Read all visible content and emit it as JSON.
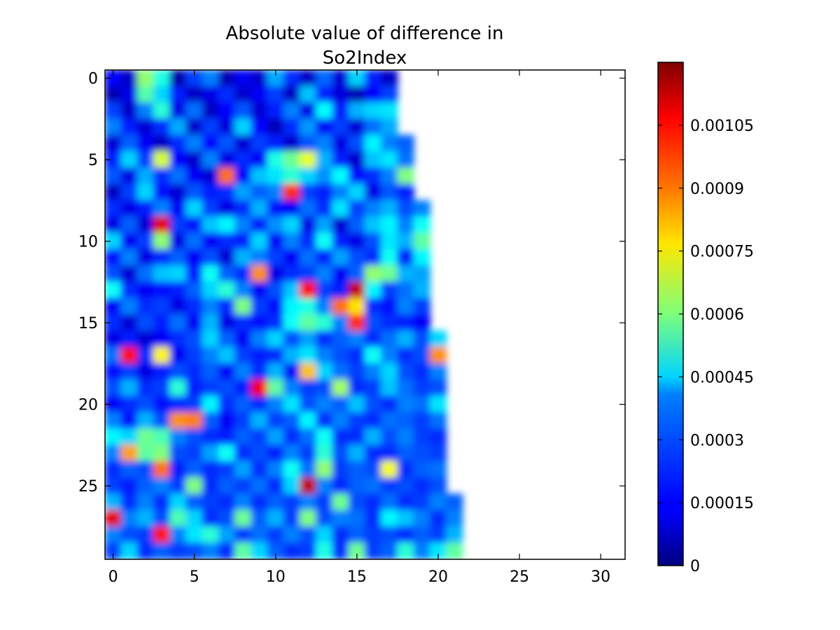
{
  "chart_data": {
    "type": "heatmap",
    "title_lines": [
      "Absolute value of difference in",
      "So2Index"
    ],
    "xlabel": "",
    "ylabel": "",
    "x_ticks": [
      0,
      5,
      10,
      15,
      20,
      25,
      30
    ],
    "y_ticks": [
      0,
      5,
      10,
      15,
      20,
      25
    ],
    "xlim": [
      -0.5,
      31.5
    ],
    "ylim": [
      29.5,
      -0.5
    ],
    "y_axis_inverted": true,
    "interpolation": "bilinear",
    "grid": false,
    "colormap": "jet",
    "colorbar": {
      "range": [
        0,
        0.0012
      ],
      "ticks": [
        {
          "value": 0,
          "label": "0"
        },
        {
          "value": 0.00015,
          "label": "0.00015"
        },
        {
          "value": 0.0003,
          "label": "0.0003"
        },
        {
          "value": 0.00045,
          "label": "0.00045"
        },
        {
          "value": 0.0006,
          "label": "0.0006"
        },
        {
          "value": 0.00075,
          "label": "0.00075"
        },
        {
          "value": 0.0009,
          "label": "0.0009"
        },
        {
          "value": 0.00105,
          "label": "0.00105"
        }
      ]
    },
    "row_valid_cols": [
      18,
      18,
      18,
      18,
      19,
      19,
      19,
      19,
      20,
      20,
      20,
      20,
      20,
      20,
      20,
      20,
      21,
      21,
      21,
      21,
      21,
      21,
      21,
      21,
      21,
      21,
      22,
      22,
      22,
      22
    ],
    "values_scale": 1e-05,
    "values": [
      [
        15,
        8,
        62,
        48,
        5,
        22,
        30,
        6,
        14,
        9,
        35,
        20,
        8,
        27,
        10,
        40,
        18,
        8,
        0,
        0,
        0,
        0,
        0,
        0,
        0,
        0,
        0,
        0,
        0,
        0,
        0,
        0
      ],
      [
        6,
        12,
        55,
        40,
        18,
        8,
        12,
        20,
        9,
        14,
        22,
        8,
        38,
        19,
        11,
        6,
        15,
        22,
        0,
        0,
        0,
        0,
        0,
        0,
        0,
        0,
        0,
        0,
        0,
        0,
        0,
        0
      ],
      [
        22,
        9,
        30,
        50,
        12,
        28,
        8,
        15,
        25,
        10,
        18,
        30,
        12,
        45,
        18,
        36,
        40,
        42,
        0,
        0,
        0,
        0,
        0,
        0,
        0,
        0,
        0,
        0,
        0,
        0,
        0,
        0
      ],
      [
        30,
        18,
        10,
        20,
        35,
        9,
        22,
        11,
        40,
        15,
        7,
        20,
        33,
        14,
        22,
        10,
        28,
        35,
        0,
        0,
        0,
        0,
        0,
        0,
        0,
        0,
        0,
        0,
        0,
        0,
        0,
        0
      ],
      [
        10,
        26,
        14,
        8,
        20,
        30,
        15,
        25,
        10,
        22,
        18,
        9,
        25,
        30,
        12,
        24,
        44,
        30,
        26,
        0,
        0,
        0,
        0,
        0,
        0,
        0,
        0,
        0,
        0,
        0,
        0,
        0
      ],
      [
        18,
        40,
        22,
        70,
        15,
        9,
        30,
        12,
        20,
        14,
        48,
        58,
        72,
        36,
        18,
        9,
        38,
        42,
        28,
        0,
        0,
        0,
        0,
        0,
        0,
        0,
        0,
        0,
        0,
        0,
        0,
        0
      ],
      [
        25,
        12,
        35,
        20,
        28,
        14,
        10,
        92,
        15,
        38,
        42,
        50,
        40,
        32,
        45,
        16,
        20,
        30,
        60,
        0,
        0,
        0,
        0,
        0,
        0,
        0,
        0,
        0,
        0,
        0,
        0,
        0
      ],
      [
        8,
        22,
        40,
        16,
        10,
        25,
        18,
        20,
        34,
        26,
        30,
        100,
        22,
        18,
        30,
        40,
        12,
        25,
        18,
        0,
        0,
        0,
        0,
        0,
        0,
        0,
        0,
        0,
        0,
        0,
        0,
        0
      ],
      [
        20,
        12,
        18,
        30,
        14,
        40,
        22,
        12,
        20,
        36,
        16,
        14,
        28,
        20,
        42,
        22,
        30,
        36,
        24,
        30,
        0,
        0,
        0,
        0,
        0,
        0,
        0,
        0,
        0,
        0,
        0,
        0
      ],
      [
        12,
        26,
        10,
        108,
        22,
        16,
        38,
        44,
        30,
        18,
        32,
        40,
        12,
        34,
        10,
        26,
        38,
        44,
        30,
        46,
        0,
        0,
        0,
        0,
        0,
        0,
        0,
        0,
        0,
        0,
        0,
        0
      ],
      [
        40,
        14,
        22,
        62,
        12,
        28,
        14,
        20,
        18,
        40,
        14,
        30,
        20,
        46,
        18,
        12,
        24,
        42,
        36,
        56,
        0,
        0,
        0,
        0,
        0,
        0,
        0,
        0,
        0,
        0,
        0,
        0
      ],
      [
        16,
        30,
        12,
        20,
        26,
        14,
        24,
        10,
        36,
        30,
        22,
        14,
        28,
        18,
        34,
        24,
        20,
        46,
        16,
        44,
        0,
        0,
        0,
        0,
        0,
        0,
        0,
        0,
        0,
        0,
        0,
        0
      ],
      [
        24,
        10,
        28,
        38,
        40,
        18,
        46,
        26,
        20,
        88,
        12,
        20,
        22,
        30,
        14,
        26,
        62,
        58,
        36,
        34,
        0,
        0,
        0,
        0,
        0,
        0,
        0,
        0,
        0,
        0,
        0,
        0
      ],
      [
        46,
        20,
        14,
        16,
        18,
        26,
        40,
        50,
        30,
        14,
        24,
        38,
        104,
        22,
        18,
        112,
        44,
        22,
        28,
        36,
        0,
        0,
        0,
        0,
        0,
        0,
        0,
        0,
        0,
        0,
        0,
        0
      ],
      [
        14,
        30,
        20,
        22,
        12,
        20,
        30,
        20,
        60,
        22,
        16,
        44,
        48,
        30,
        92,
        78,
        20,
        16,
        30,
        22,
        0,
        0,
        0,
        0,
        0,
        0,
        0,
        0,
        0,
        0,
        0,
        0
      ],
      [
        20,
        10,
        24,
        18,
        28,
        14,
        36,
        12,
        20,
        16,
        20,
        46,
        56,
        50,
        30,
        100,
        24,
        20,
        18,
        14,
        0,
        0,
        0,
        0,
        0,
        0,
        0,
        0,
        0,
        0,
        0,
        0
      ],
      [
        12,
        18,
        10,
        14,
        20,
        24,
        40,
        26,
        14,
        30,
        40,
        24,
        34,
        20,
        26,
        30,
        20,
        28,
        36,
        24,
        40,
        0,
        0,
        0,
        0,
        0,
        0,
        0,
        0,
        0,
        0,
        0
      ],
      [
        28,
        104,
        20,
        76,
        14,
        22,
        30,
        38,
        22,
        18,
        20,
        36,
        42,
        30,
        24,
        20,
        46,
        30,
        20,
        24,
        88,
        0,
        0,
        0,
        0,
        0,
        0,
        0,
        0,
        0,
        0,
        0
      ],
      [
        16,
        22,
        12,
        18,
        24,
        20,
        26,
        14,
        30,
        20,
        36,
        14,
        82,
        40,
        28,
        22,
        30,
        40,
        24,
        20,
        30,
        0,
        0,
        0,
        0,
        0,
        0,
        0,
        0,
        0,
        0,
        0
      ],
      [
        24,
        36,
        20,
        22,
        50,
        18,
        22,
        24,
        18,
        106,
        56,
        30,
        22,
        24,
        64,
        20,
        22,
        38,
        28,
        22,
        24,
        0,
        0,
        0,
        0,
        0,
        0,
        0,
        0,
        0,
        0,
        0
      ],
      [
        14,
        20,
        24,
        16,
        20,
        22,
        44,
        20,
        26,
        20,
        30,
        42,
        24,
        30,
        26,
        38,
        24,
        20,
        30,
        28,
        42,
        0,
        0,
        0,
        0,
        0,
        0,
        0,
        0,
        0,
        0,
        0
      ],
      [
        30,
        16,
        36,
        24,
        88,
        90,
        26,
        14,
        22,
        36,
        22,
        26,
        44,
        20,
        30,
        22,
        20,
        28,
        26,
        22,
        28,
        0,
        0,
        0,
        0,
        0,
        0,
        0,
        0,
        0,
        0,
        0
      ],
      [
        44,
        40,
        58,
        54,
        30,
        24,
        20,
        18,
        26,
        22,
        34,
        20,
        28,
        46,
        20,
        20,
        36,
        24,
        30,
        22,
        20,
        0,
        0,
        0,
        0,
        0,
        0,
        0,
        0,
        0,
        0,
        0
      ],
      [
        30,
        86,
        56,
        60,
        24,
        22,
        34,
        46,
        20,
        24,
        18,
        30,
        22,
        50,
        24,
        36,
        20,
        20,
        26,
        24,
        22,
        0,
        0,
        0,
        0,
        0,
        0,
        0,
        0,
        0,
        0,
        0
      ],
      [
        20,
        26,
        24,
        92,
        18,
        26,
        20,
        22,
        34,
        20,
        30,
        46,
        28,
        62,
        22,
        26,
        24,
        74,
        20,
        26,
        28,
        0,
        0,
        0,
        0,
        0,
        0,
        0,
        0,
        0,
        0,
        0
      ],
      [
        22,
        18,
        26,
        30,
        22,
        60,
        20,
        26,
        22,
        28,
        20,
        40,
        112,
        30,
        20,
        26,
        28,
        22,
        24,
        20,
        24,
        0,
        0,
        0,
        0,
        0,
        0,
        0,
        0,
        0,
        0,
        0
      ],
      [
        36,
        20,
        30,
        20,
        40,
        26,
        22,
        20,
        30,
        20,
        26,
        22,
        30,
        22,
        58,
        24,
        20,
        28,
        20,
        22,
        30,
        26,
        0,
        0,
        0,
        0,
        0,
        0,
        0,
        0,
        0,
        0
      ],
      [
        108,
        30,
        36,
        24,
        54,
        40,
        20,
        24,
        58,
        26,
        36,
        22,
        60,
        24,
        30,
        28,
        20,
        44,
        38,
        30,
        20,
        30,
        0,
        0,
        0,
        0,
        0,
        0,
        0,
        0,
        0,
        0
      ],
      [
        30,
        24,
        22,
        102,
        30,
        42,
        50,
        34,
        22,
        28,
        22,
        30,
        24,
        40,
        20,
        26,
        22,
        24,
        20,
        26,
        22,
        36,
        0,
        0,
        0,
        0,
        0,
        0,
        0,
        0,
        0,
        0
      ],
      [
        22,
        40,
        20,
        26,
        22,
        24,
        30,
        20,
        56,
        40,
        26,
        20,
        22,
        48,
        20,
        58,
        22,
        26,
        50,
        30,
        42,
        56,
        0,
        0,
        0,
        0,
        0,
        0,
        0,
        0,
        0,
        0
      ]
    ]
  }
}
